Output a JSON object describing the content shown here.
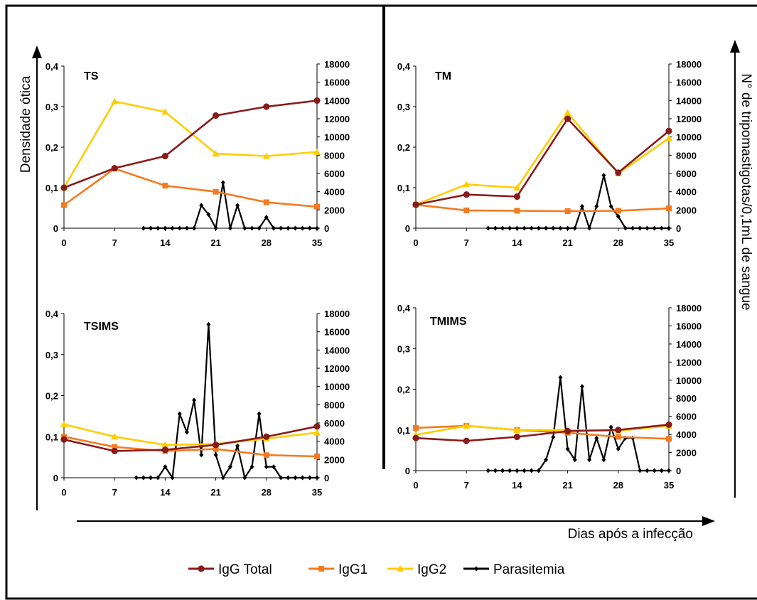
{
  "figure": {
    "y_left_label": "Densidade ótica",
    "y_right_label": "N° de tripomastigotas/0,1mL de sangue",
    "x_label": "Dias após a infecção"
  },
  "legend": [
    {
      "name": "IgG Total",
      "color": "#8B1A1A",
      "marker": "circle"
    },
    {
      "name": "IgG1",
      "color": "#F47A20",
      "marker": "square"
    },
    {
      "name": "IgG2",
      "color": "#FFCC00",
      "marker": "triangle"
    },
    {
      "name": "Parasitemia",
      "color": "#000000",
      "marker": "diamond"
    }
  ],
  "chart_data": [
    {
      "type": "line",
      "title": "TS",
      "x_ticks": [
        "0",
        "7",
        "14",
        "21",
        "28",
        "35"
      ],
      "y_ticks": [
        "0",
        "0,1",
        "0,2",
        "0,3",
        "0,4"
      ],
      "y2_ticks": [
        "0",
        "2000",
        "4000",
        "6000",
        "8000",
        "10000",
        "12000",
        "14000",
        "16000",
        "18000"
      ],
      "xlim": [
        0,
        35
      ],
      "ylim": [
        0,
        0.4
      ],
      "y2lim": [
        0,
        18000
      ],
      "series": [
        {
          "name": "IgG Total",
          "axis": "left",
          "x": [
            0,
            7,
            14,
            21,
            28,
            35
          ],
          "values": [
            0.1,
            0.148,
            0.178,
            0.278,
            0.3,
            0.315
          ]
        },
        {
          "name": "IgG1",
          "axis": "left",
          "x": [
            0,
            7,
            14,
            21,
            28,
            35
          ],
          "values": [
            0.057,
            0.147,
            0.105,
            0.09,
            0.064,
            0.053
          ]
        },
        {
          "name": "IgG2",
          "axis": "left",
          "x": [
            0,
            7,
            14,
            21,
            28,
            35
          ],
          "values": [
            0.1,
            0.313,
            0.287,
            0.184,
            0.178,
            0.188
          ]
        },
        {
          "name": "Parasitemia",
          "axis": "right",
          "x": [
            11,
            12,
            13,
            14,
            15,
            16,
            17,
            18,
            19,
            20,
            21,
            22,
            23,
            24,
            25,
            26,
            27,
            28,
            29,
            30,
            31,
            32,
            33,
            34,
            35
          ],
          "values": [
            0,
            0,
            0,
            0,
            0,
            0,
            0,
            0,
            2500,
            1500,
            0,
            5000,
            0,
            2500,
            0,
            0,
            0,
            1200,
            0,
            0,
            0,
            0,
            0,
            0,
            0
          ]
        }
      ]
    },
    {
      "type": "line",
      "title": "TM",
      "x_ticks": [
        "0",
        "7",
        "14",
        "21",
        "28",
        "35"
      ],
      "y_ticks": [
        "0",
        "0,1",
        "0,2",
        "0,3",
        "0,4"
      ],
      "y2_ticks": [
        "0",
        "2000",
        "4000",
        "6000",
        "8000",
        "10000",
        "12000",
        "14000",
        "16000",
        "18000"
      ],
      "xlim": [
        0,
        35
      ],
      "ylim": [
        0,
        0.4
      ],
      "y2lim": [
        0,
        18000
      ],
      "series": [
        {
          "name": "IgG Total",
          "axis": "left",
          "x": [
            0,
            7,
            14,
            21,
            28,
            35
          ],
          "values": [
            0.058,
            0.083,
            0.078,
            0.27,
            0.137,
            0.24
          ]
        },
        {
          "name": "IgG1",
          "axis": "left",
          "x": [
            0,
            7,
            14,
            21,
            28,
            35
          ],
          "values": [
            0.058,
            0.044,
            0.043,
            0.042,
            0.043,
            0.049
          ]
        },
        {
          "name": "IgG2",
          "axis": "left",
          "x": [
            0,
            7,
            14,
            21,
            28,
            35
          ],
          "values": [
            0.058,
            0.108,
            0.1,
            0.285,
            0.135,
            0.222
          ]
        },
        {
          "name": "Parasitemia",
          "axis": "right",
          "x": [
            10,
            11,
            12,
            13,
            14,
            15,
            16,
            17,
            18,
            19,
            20,
            21,
            22,
            23,
            24,
            25,
            26,
            27,
            28,
            29,
            30,
            31,
            32,
            33,
            34,
            35
          ],
          "values": [
            0,
            0,
            0,
            0,
            0,
            0,
            0,
            0,
            0,
            0,
            0,
            0,
            0,
            2400,
            0,
            2400,
            5800,
            2400,
            1300,
            0,
            0,
            0,
            0,
            0,
            0,
            0
          ]
        }
      ]
    },
    {
      "type": "line",
      "title": "TSIMS",
      "x_ticks": [
        "0",
        "7",
        "14",
        "21",
        "28",
        "35"
      ],
      "y_ticks": [
        "0",
        "0,1",
        "0,2",
        "0,3",
        "0,4"
      ],
      "y2_ticks": [
        "0",
        "2000",
        "4000",
        "6000",
        "8000",
        "10000",
        "12000",
        "14000",
        "16000",
        "18000"
      ],
      "xlim": [
        0,
        35
      ],
      "ylim": [
        0,
        0.4
      ],
      "y2lim": [
        0,
        18000
      ],
      "series": [
        {
          "name": "IgG Total",
          "axis": "left",
          "x": [
            0,
            7,
            14,
            21,
            28,
            35
          ],
          "values": [
            0.093,
            0.065,
            0.068,
            0.08,
            0.1,
            0.125
          ]
        },
        {
          "name": "IgG1",
          "axis": "left",
          "x": [
            0,
            7,
            14,
            21,
            28,
            35
          ],
          "values": [
            0.1,
            0.075,
            0.065,
            0.07,
            0.055,
            0.052
          ]
        },
        {
          "name": "IgG2",
          "axis": "left",
          "x": [
            0,
            7,
            14,
            21,
            28,
            35
          ],
          "values": [
            0.13,
            0.1,
            0.08,
            0.082,
            0.095,
            0.11
          ]
        },
        {
          "name": "Parasitemia",
          "axis": "right",
          "x": [
            10,
            11,
            12,
            13,
            14,
            15,
            16,
            17,
            18,
            19,
            20,
            21,
            22,
            23,
            24,
            25,
            26,
            27,
            28,
            29,
            30,
            31,
            32,
            33,
            34,
            35
          ],
          "values": [
            0,
            0,
            0,
            0,
            1200,
            0,
            7000,
            5000,
            8500,
            2500,
            16800,
            2500,
            0,
            1200,
            3500,
            0,
            1200,
            7000,
            1200,
            1200,
            0,
            0,
            0,
            0,
            0,
            0
          ]
        }
      ]
    },
    {
      "type": "line",
      "title": "TMIMS",
      "x_ticks": [
        "0",
        "7",
        "14",
        "21",
        "28",
        "35"
      ],
      "y_ticks": [
        "0",
        "0,1",
        "0,2",
        "0,3",
        "0,4"
      ],
      "y2_ticks": [
        "0",
        "2000",
        "4000",
        "6000",
        "8000",
        "10000",
        "12000",
        "14000",
        "16000",
        "18000"
      ],
      "xlim": [
        0,
        35
      ],
      "ylim": [
        0,
        0.4
      ],
      "y2lim": [
        0,
        18000
      ],
      "series": [
        {
          "name": "IgG Total",
          "axis": "left",
          "x": [
            0,
            7,
            14,
            21,
            28,
            35
          ],
          "values": [
            0.08,
            0.073,
            0.083,
            0.097,
            0.1,
            0.113
          ]
        },
        {
          "name": "IgG1",
          "axis": "left",
          "x": [
            0,
            7,
            14,
            21,
            28,
            35
          ],
          "values": [
            0.105,
            0.11,
            0.1,
            0.093,
            0.083,
            0.078
          ]
        },
        {
          "name": "IgG2",
          "axis": "left",
          "x": [
            0,
            7,
            14,
            21,
            28,
            35
          ],
          "values": [
            0.088,
            0.11,
            0.1,
            0.1,
            0.098,
            0.11
          ]
        },
        {
          "name": "Parasitemia",
          "axis": "right",
          "x": [
            10,
            11,
            12,
            13,
            14,
            15,
            16,
            17,
            18,
            19,
            20,
            21,
            22,
            23,
            24,
            25,
            26,
            27,
            28,
            29,
            30,
            31,
            32,
            33,
            34,
            35
          ],
          "values": [
            0,
            0,
            0,
            0,
            0,
            0,
            0,
            0,
            1200,
            3700,
            10300,
            2400,
            1200,
            9300,
            1200,
            3600,
            1200,
            4800,
            2400,
            3600,
            3600,
            0,
            0,
            0,
            0,
            0
          ]
        }
      ]
    }
  ]
}
